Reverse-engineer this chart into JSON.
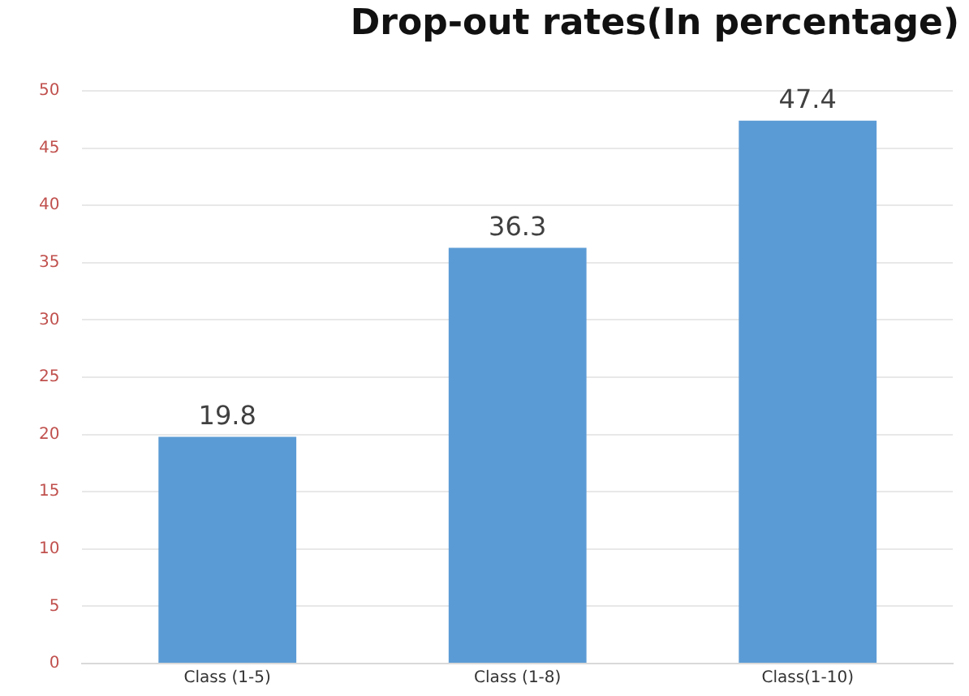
{
  "chart_data": {
    "type": "bar",
    "title": "Drop-out rates(In percentage)",
    "categories": [
      "Class (1-5)",
      "Class (1-8)",
      "Class(1-10)"
    ],
    "values": [
      19.8,
      36.3,
      47.4
    ],
    "color": "#5b9bd5",
    "ylim": [
      0,
      50
    ],
    "yticks": [
      0,
      5,
      10,
      15,
      20,
      25,
      30,
      35,
      40,
      45,
      50
    ],
    "grid": "y",
    "data_labels": true,
    "legend": false
  }
}
